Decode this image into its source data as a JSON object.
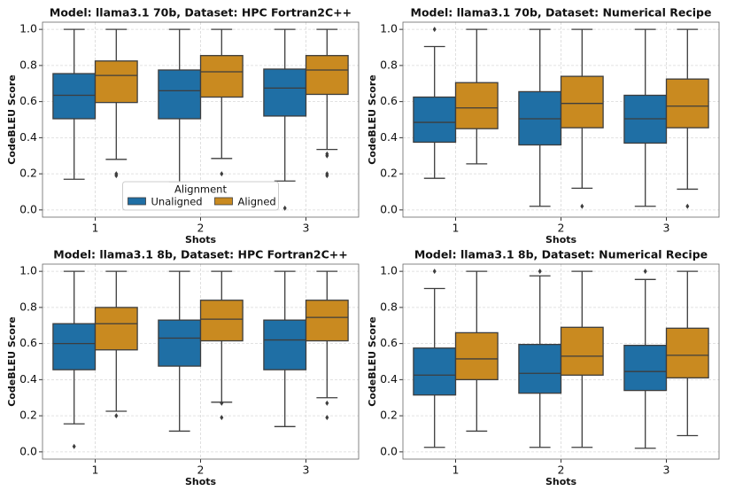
{
  "chart_data": [
    {
      "type": "box",
      "title": "Model: llama3.1 70b, Dataset: HPC Fortran2C++",
      "xlabel": "Shots",
      "ylabel": "CodeBLEU Score",
      "categories": [
        "1",
        "2",
        "3"
      ],
      "ylim": [
        -0.04,
        1.04
      ],
      "yticks": [
        {
          "value": 0,
          "label": "0.0"
        },
        0.2,
        0.4,
        0.6,
        0.8,
        {
          "value": 1,
          "label": "1.0"
        }
      ],
      "grid": true,
      "legend": "lower center",
      "legend_title": "Alignment",
      "series": [
        {
          "name": "Unaligned",
          "color": "#1f6fa5",
          "values": [
            {
              "min": 0.17,
              "q1": 0.505,
              "median": 0.635,
              "q3": 0.755,
              "max": 1.0,
              "outliers": []
            },
            {
              "min": 0.155,
              "q1": 0.505,
              "median": 0.66,
              "q3": 0.775,
              "max": 1.0,
              "outliers": []
            },
            {
              "min": 0.16,
              "q1": 0.52,
              "median": 0.675,
              "q3": 0.78,
              "max": 1.0,
              "outliers": [
                0.01
              ]
            }
          ]
        },
        {
          "name": "Aligned",
          "color": "#c98a20",
          "values": [
            {
              "min": 0.28,
              "q1": 0.595,
              "median": 0.745,
              "q3": 0.825,
              "max": 1.0,
              "outliers": [
                0.2,
                0.19
              ]
            },
            {
              "min": 0.285,
              "q1": 0.625,
              "median": 0.765,
              "q3": 0.855,
              "max": 1.0,
              "outliers": [
                0.2
              ]
            },
            {
              "min": 0.335,
              "q1": 0.64,
              "median": 0.775,
              "q3": 0.855,
              "max": 1.0,
              "outliers": [
                0.31,
                0.3,
                0.2,
                0.19
              ]
            }
          ]
        }
      ]
    },
    {
      "type": "box",
      "title": "Model: llama3.1 70b, Dataset: Numerical Recipe",
      "xlabel": "Shots",
      "ylabel": "CodeBLEU Score",
      "categories": [
        "1",
        "2",
        "3"
      ],
      "ylim": [
        -0.04,
        1.04
      ],
      "yticks": [
        {
          "value": 0,
          "label": "0.0"
        },
        0.2,
        0.4,
        0.6,
        0.8,
        {
          "value": 1,
          "label": "1.0"
        }
      ],
      "grid": true,
      "series": [
        {
          "name": "Unaligned",
          "color": "#1f6fa5",
          "values": [
            {
              "min": 0.175,
              "q1": 0.375,
              "median": 0.485,
              "q3": 0.625,
              "max": 0.905,
              "outliers": [
                1.0
              ]
            },
            {
              "min": 0.02,
              "q1": 0.36,
              "median": 0.505,
              "q3": 0.655,
              "max": 1.0,
              "outliers": []
            },
            {
              "min": 0.02,
              "q1": 0.37,
              "median": 0.505,
              "q3": 0.635,
              "max": 1.0,
              "outliers": []
            }
          ]
        },
        {
          "name": "Aligned",
          "color": "#c98a20",
          "values": [
            {
              "min": 0.255,
              "q1": 0.45,
              "median": 0.565,
              "q3": 0.705,
              "max": 1.0,
              "outliers": []
            },
            {
              "min": 0.12,
              "q1": 0.455,
              "median": 0.59,
              "q3": 0.74,
              "max": 1.0,
              "outliers": [
                0.02
              ]
            },
            {
              "min": 0.115,
              "q1": 0.455,
              "median": 0.575,
              "q3": 0.725,
              "max": 1.0,
              "outliers": [
                0.02
              ]
            }
          ]
        }
      ]
    },
    {
      "type": "box",
      "title": "Model: llama3.1 8b, Dataset: HPC Fortran2C++",
      "xlabel": "Shots",
      "ylabel": "CodeBLEU Score",
      "categories": [
        "1",
        "2",
        "3"
      ],
      "ylim": [
        -0.04,
        1.04
      ],
      "yticks": [
        {
          "value": 0,
          "label": "0.0"
        },
        0.2,
        0.4,
        0.6,
        0.8,
        {
          "value": 1,
          "label": "1.0"
        }
      ],
      "grid": true,
      "series": [
        {
          "name": "Unaligned",
          "color": "#1f6fa5",
          "values": [
            {
              "min": 0.155,
              "q1": 0.455,
              "median": 0.6,
              "q3": 0.71,
              "max": 1.0,
              "outliers": [
                0.03
              ]
            },
            {
              "min": 0.115,
              "q1": 0.475,
              "median": 0.63,
              "q3": 0.73,
              "max": 1.0,
              "outliers": []
            },
            {
              "min": 0.14,
              "q1": 0.455,
              "median": 0.62,
              "q3": 0.73,
              "max": 1.0,
              "outliers": []
            }
          ]
        },
        {
          "name": "Aligned",
          "color": "#c98a20",
          "values": [
            {
              "min": 0.225,
              "q1": 0.565,
              "median": 0.71,
              "q3": 0.8,
              "max": 1.0,
              "outliers": [
                0.2
              ]
            },
            {
              "min": 0.275,
              "q1": 0.615,
              "median": 0.735,
              "q3": 0.84,
              "max": 1.0,
              "outliers": [
                0.27,
                0.19
              ]
            },
            {
              "min": 0.3,
              "q1": 0.615,
              "median": 0.745,
              "q3": 0.84,
              "max": 1.0,
              "outliers": [
                0.27,
                0.19
              ]
            }
          ]
        }
      ]
    },
    {
      "type": "box",
      "title": "Model: llama3.1 8b, Dataset: Numerical Recipe",
      "xlabel": "Shots",
      "ylabel": "CodeBLEU Score",
      "categories": [
        "1",
        "2",
        "3"
      ],
      "ylim": [
        -0.04,
        1.04
      ],
      "yticks": [
        {
          "value": 0,
          "label": "0.0"
        },
        0.2,
        0.4,
        0.6,
        0.8,
        {
          "value": 1,
          "label": "1.0"
        }
      ],
      "grid": true,
      "series": [
        {
          "name": "Unaligned",
          "color": "#1f6fa5",
          "values": [
            {
              "min": 0.025,
              "q1": 0.315,
              "median": 0.425,
              "q3": 0.575,
              "max": 0.905,
              "outliers": [
                1.0
              ]
            },
            {
              "min": 0.025,
              "q1": 0.325,
              "median": 0.435,
              "q3": 0.595,
              "max": 0.975,
              "outliers": [
                1.0
              ]
            },
            {
              "min": 0.02,
              "q1": 0.34,
              "median": 0.445,
              "q3": 0.59,
              "max": 0.955,
              "outliers": [
                1.0
              ]
            }
          ]
        },
        {
          "name": "Aligned",
          "color": "#c98a20",
          "values": [
            {
              "min": 0.115,
              "q1": 0.4,
              "median": 0.515,
              "q3": 0.66,
              "max": 1.0,
              "outliers": []
            },
            {
              "min": 0.025,
              "q1": 0.425,
              "median": 0.53,
              "q3": 0.69,
              "max": 1.0,
              "outliers": []
            },
            {
              "min": 0.09,
              "q1": 0.41,
              "median": 0.535,
              "q3": 0.685,
              "max": 1.0,
              "outliers": []
            }
          ]
        }
      ]
    }
  ]
}
